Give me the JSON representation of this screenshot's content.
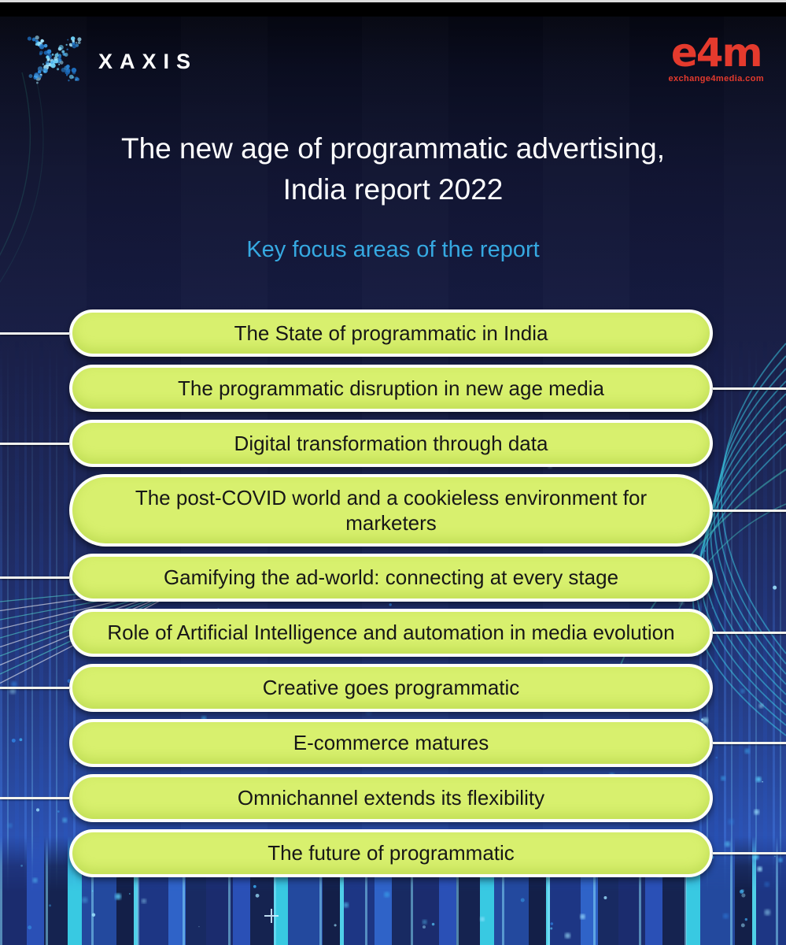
{
  "header": {
    "xaxis_logo_text": "XAXIS",
    "e4m_logo_text": "e4m",
    "e4m_logo_subtext": "exchange4media.com"
  },
  "title": {
    "line1": "The new age of programmatic advertising,",
    "line2": "India report 2022"
  },
  "subtitle": "Key focus areas of the report",
  "focus_areas": [
    {
      "label": "The State of programmatic in India",
      "connector": "left"
    },
    {
      "label": "The programmatic disruption in new age media",
      "connector": "right"
    },
    {
      "label": "Digital transformation through data",
      "connector": "left"
    },
    {
      "label": "The post-COVID world and a cookieless environment for marketers",
      "connector": "right"
    },
    {
      "label": "Gamifying the ad-world: connecting at every stage",
      "connector": "left"
    },
    {
      "label": "Role of Artificial Intelligence and automation in media evolution",
      "connector": "right"
    },
    {
      "label": "Creative goes programmatic",
      "connector": "left"
    },
    {
      "label": "E-commerce matures",
      "connector": "right"
    },
    {
      "label": "Omnichannel extends its flexibility",
      "connector": "left"
    },
    {
      "label": "The future of programmatic",
      "connector": "right"
    }
  ],
  "colors": {
    "pill_fill": "#d8f06e",
    "pill_border": "#ffffff",
    "pill_text": "#171717",
    "title_text": "#ffffff",
    "subtitle_text": "#36a9e1",
    "e4m_red": "#e43a2d",
    "xaxis_dot_blue": "#52b8f0",
    "connector_line": "#f2f3ee",
    "background_top": "#04050c",
    "background_bottom": "#3160cd",
    "stripe_cyan": "#38c9e2"
  }
}
